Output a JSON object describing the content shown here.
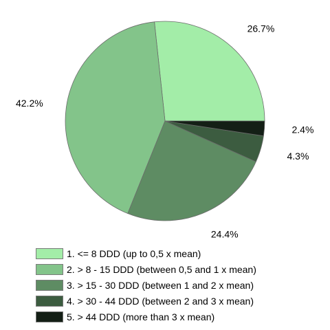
{
  "chart_data": {
    "type": "pie",
    "categories": [
      "1. <= 8 DDD (up to 0,5 x mean)",
      "2. > 8 - 15 DDD (between 0,5 and 1 x mean)",
      "3. > 15 - 30 DDD (between 1 and 2 x mean)",
      "4. > 30 - 44 DDD (between 2 and 3 x mean)",
      "5. > 44 DDD (more than 3 x mean)"
    ],
    "values": [
      26.7,
      42.2,
      24.4,
      4.3,
      2.4
    ],
    "data_labels": [
      "26.7%",
      "42.2%",
      "24.4%",
      "4.3%",
      "2.4%"
    ],
    "colors": [
      "#a3eda8",
      "#83c48a",
      "#5e8c63",
      "#3c5c40",
      "#141f16"
    ],
    "legend_position": "bottom"
  }
}
